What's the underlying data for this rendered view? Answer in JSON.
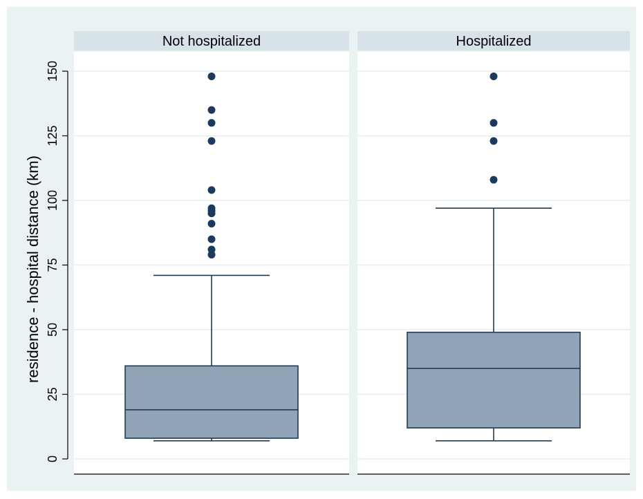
{
  "chart_data": {
    "type": "box",
    "ylabel": "residence - hospital distance (km)",
    "ylim": [
      0,
      150
    ],
    "y_ticks": [
      0,
      25,
      50,
      75,
      100,
      125,
      150
    ],
    "y_tick_labels": [
      "0",
      "25",
      "50",
      "75",
      "100",
      "125",
      "150"
    ],
    "grid": true,
    "panels": [
      {
        "name": "Not hospitalized",
        "min": 7,
        "q1": 8,
        "median": 19,
        "q3": 36,
        "max": 71,
        "outliers": [
          79,
          81,
          85,
          91,
          95,
          96,
          97,
          104,
          123,
          130,
          135,
          148
        ]
      },
      {
        "name": "Hospitalized",
        "min": 7,
        "q1": 12,
        "median": 35,
        "q3": 49,
        "max": 97,
        "outliers": [
          108,
          123,
          130,
          148
        ]
      }
    ],
    "colors": {
      "background": "#eaf2f3",
      "strip": "#d7e3e8",
      "plot_area": "#ffffff",
      "grid": "#e8eef0",
      "box_fill": "#91a3b6",
      "line": "#1f3a52",
      "marker": "#1b3a5c",
      "text": "#000000"
    }
  }
}
